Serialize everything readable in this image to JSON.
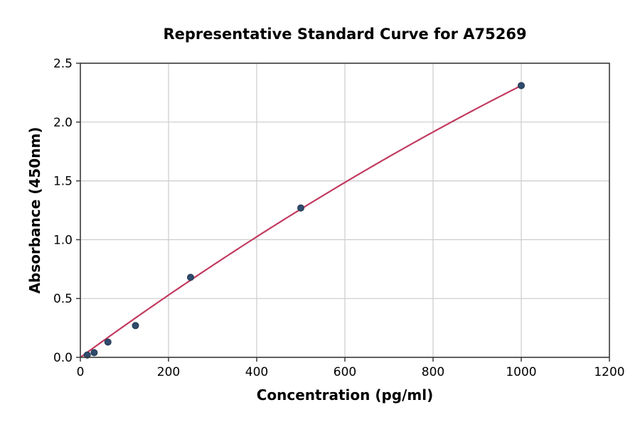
{
  "figure": {
    "background": "#ffffff"
  },
  "chart_data": {
    "type": "scatter",
    "title": "Representative Standard Curve for A75269",
    "xlabel": "Concentration (pg/ml)",
    "ylabel": "Absorbance (450nm)",
    "xlim": [
      0,
      1200
    ],
    "ylim": [
      0,
      2.5
    ],
    "x_ticks": [
      0,
      200,
      400,
      600,
      800,
      1000,
      1200
    ],
    "x_tick_labels": [
      "0",
      "200",
      "400",
      "600",
      "800",
      "1000",
      "1200"
    ],
    "y_ticks": [
      0.0,
      0.5,
      1.0,
      1.5,
      2.0,
      2.5
    ],
    "y_tick_labels": [
      "0.0",
      "0.5",
      "1.0",
      "1.5",
      "2.0",
      "2.5"
    ],
    "grid": true,
    "legend": "none",
    "points": [
      {
        "x": 15.6,
        "y": 0.02
      },
      {
        "x": 31.25,
        "y": 0.04
      },
      {
        "x": 62.5,
        "y": 0.13
      },
      {
        "x": 125,
        "y": 0.27
      },
      {
        "x": 250,
        "y": 0.68
      },
      {
        "x": 500,
        "y": 1.27
      },
      {
        "x": 1000,
        "y": 2.31
      }
    ],
    "fit_curve": {
      "type": "quadratic",
      "a": 0.00273,
      "b": -4.2e-07,
      "x_start": 0,
      "x_end": 1000
    },
    "colors": {
      "marker": "#2f4b6e",
      "marker_edge": "#24384f",
      "curve": "#c23a60",
      "grid": "#cccccc",
      "spine": "#3c3c3c",
      "text": "#000000",
      "background": "#ffffff"
    }
  }
}
